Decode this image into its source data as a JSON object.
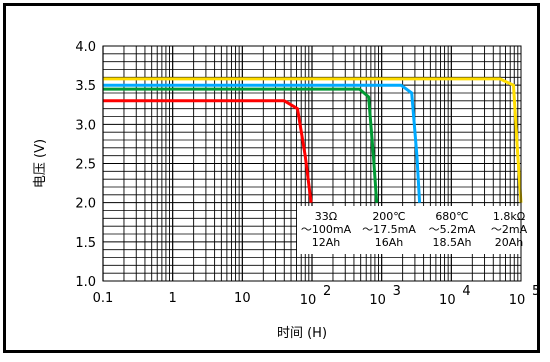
{
  "chart_data": {
    "type": "line",
    "xlabel": "时间 (H)",
    "ylabel": "电压 (V)",
    "x_scale": "log",
    "xlim": [
      0.1,
      100000
    ],
    "ylim": [
      1.0,
      4.0
    ],
    "grid": true,
    "x_ticks": [
      {
        "value": 0.1,
        "label": "0.1"
      },
      {
        "value": 1,
        "label": "1"
      },
      {
        "value": 10,
        "label": "10"
      },
      {
        "value": 100,
        "base": "10",
        "exp": "2"
      },
      {
        "value": 1000,
        "base": "10",
        "exp": "3"
      },
      {
        "value": 10000,
        "base": "10",
        "exp": "4"
      },
      {
        "value": 100000,
        "base": "10",
        "exp": "5"
      }
    ],
    "y_ticks": [
      "1.0",
      "1.5",
      "2.0",
      "2.5",
      "3.0",
      "3.5",
      "4.0"
    ],
    "series": [
      {
        "color": "#ff0000",
        "points": [
          [
            0.1,
            3.3
          ],
          [
            40,
            3.3
          ],
          [
            62,
            3.2
          ],
          [
            80,
            2.6
          ],
          [
            97,
            2.0
          ]
        ],
        "label": [
          "33Ω",
          "～100mA",
          "12Ah"
        ]
      },
      {
        "color": "#009933",
        "points": [
          [
            0.1,
            3.45
          ],
          [
            480,
            3.45
          ],
          [
            650,
            3.35
          ],
          [
            760,
            2.6
          ],
          [
            850,
            2.0
          ]
        ],
        "label": [
          "200℃",
          "～17.5mA",
          "16Ah"
        ]
      },
      {
        "color": "#00aaff",
        "points": [
          [
            0.1,
            3.5
          ],
          [
            1900,
            3.5
          ],
          [
            2700,
            3.4
          ],
          [
            3200,
            2.6
          ],
          [
            3500,
            2.0
          ]
        ],
        "label": [
          "680℃",
          "～5.2mA",
          "18.5Ah"
        ]
      },
      {
        "color": "#ffdd00",
        "points": [
          [
            0.1,
            3.58
          ],
          [
            50000,
            3.58
          ],
          [
            78000,
            3.5
          ],
          [
            90000,
            2.6
          ],
          [
            100000,
            2.0
          ]
        ],
        "label": [
          "1.8kΩ",
          "～2mA",
          "20Ah"
        ]
      }
    ]
  }
}
